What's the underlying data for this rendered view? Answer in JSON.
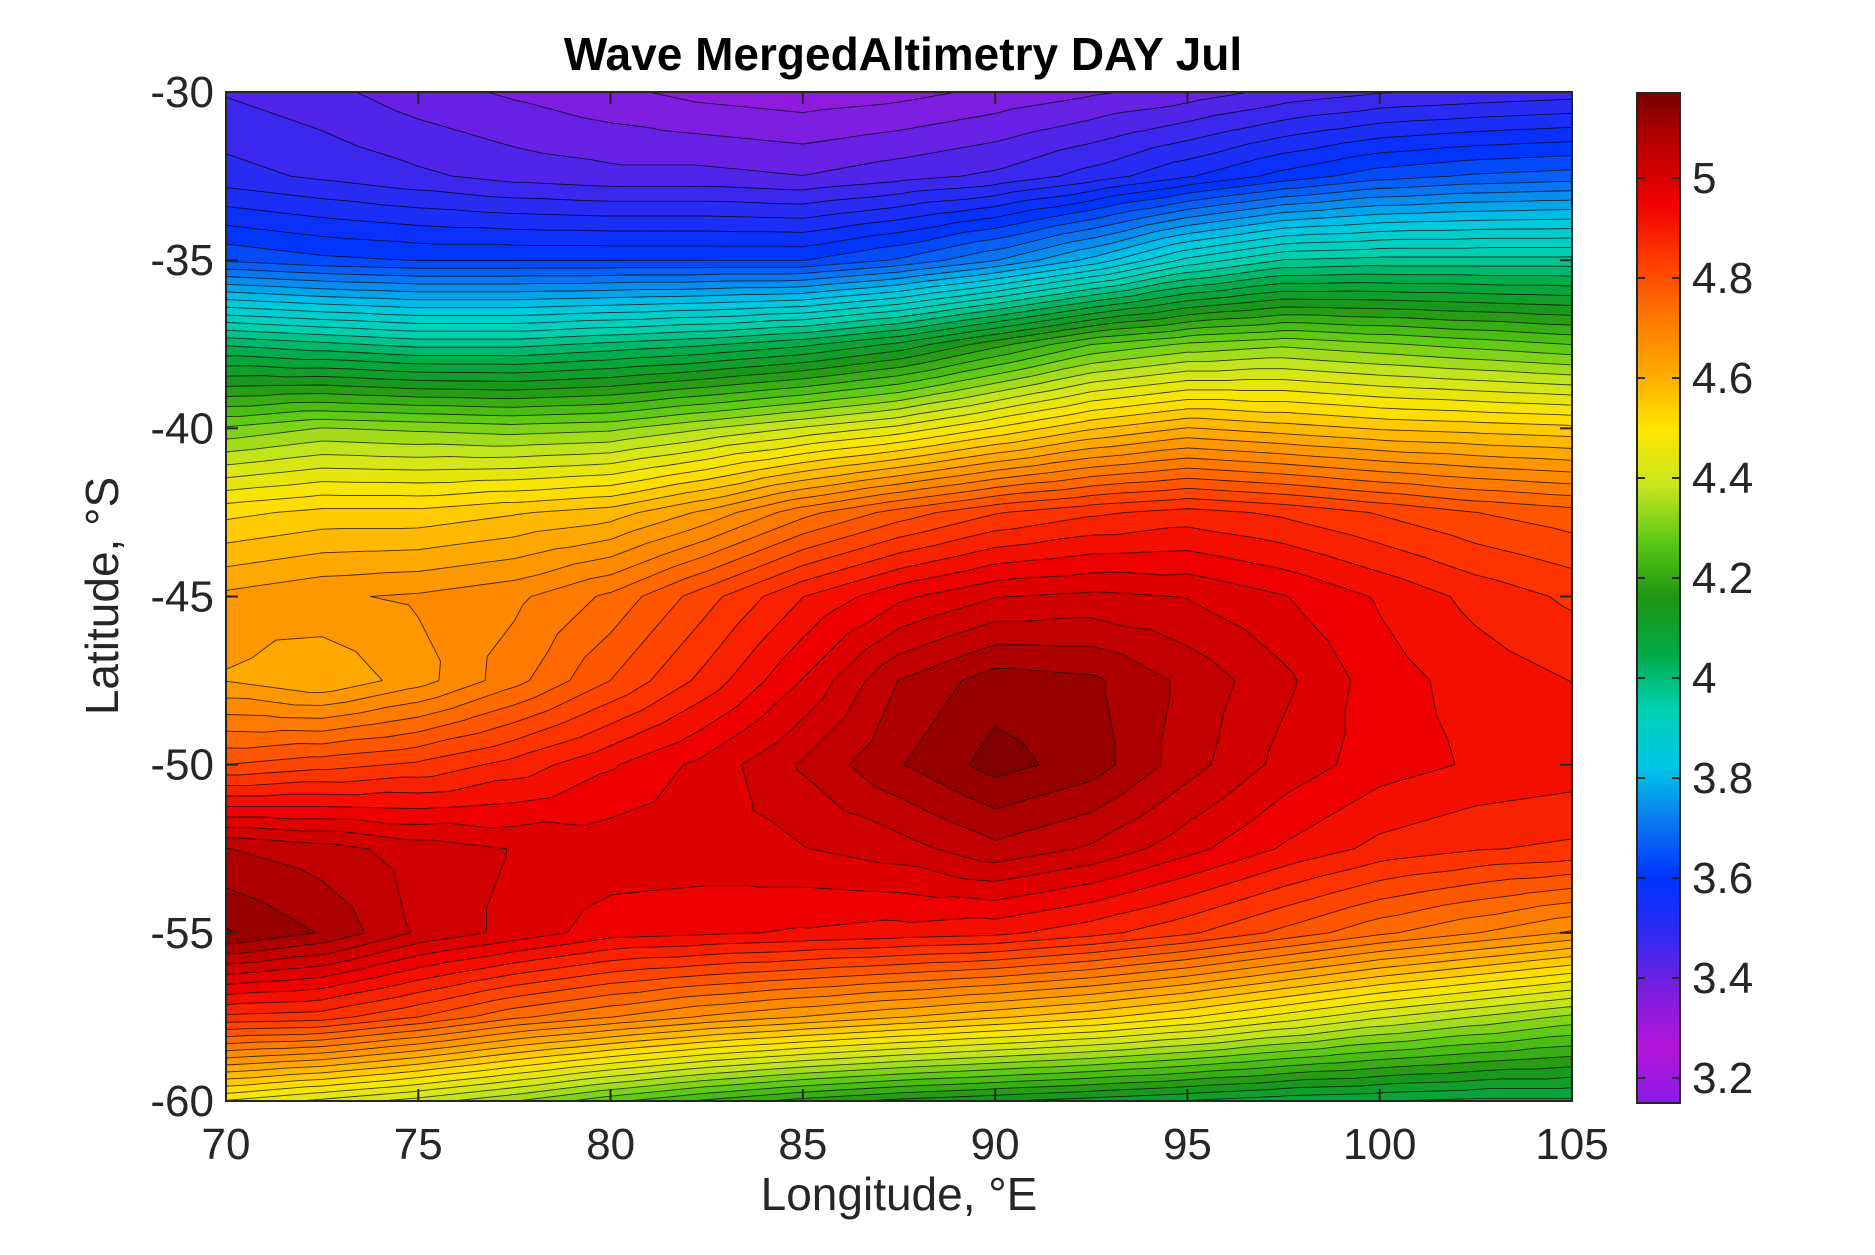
{
  "chart_data": {
    "type": "heatmap",
    "subtype": "filled-contour",
    "title": "Wave MergedAltimetry DAY Jul",
    "xlabel": "Longitude, °E",
    "ylabel": "Latitude, °S",
    "xlim": [
      70,
      105
    ],
    "ylim": [
      -60,
      -30
    ],
    "xticks": [
      70,
      75,
      80,
      85,
      90,
      95,
      100,
      105
    ],
    "yticks": [
      -30,
      -35,
      -40,
      -45,
      -50,
      -55,
      -60
    ],
    "colorbar": {
      "range": [
        3.15,
        5.17
      ],
      "ticks": [
        3.2,
        3.4,
        3.6,
        3.8,
        4,
        4.2,
        4.4,
        4.6,
        4.8,
        5
      ],
      "tick_labels": [
        "3.2",
        "3.4",
        "3.6",
        "3.8",
        "4",
        "4.2",
        "4.4",
        "4.6",
        "4.8",
        "5"
      ],
      "colormap": [
        "#8a1be8",
        "#b414d8",
        "#7a1ee0",
        "#2f2af0",
        "#0032ff",
        "#0a78f0",
        "#00c8e6",
        "#00d2b4",
        "#00aa46",
        "#1e9614",
        "#5ac814",
        "#c8e61e",
        "#ffe600",
        "#ffaa00",
        "#ff7800",
        "#ff3c00",
        "#f00000",
        "#c00000",
        "#780000"
      ]
    },
    "grid": false,
    "field": {
      "lon": [
        70,
        72.5,
        75,
        77.5,
        80,
        82.5,
        85,
        87.5,
        90,
        92.5,
        95,
        97.5,
        100,
        102.5,
        105
      ],
      "lat": [
        -30,
        -32.5,
        -35,
        -37.5,
        -40,
        -42.5,
        -45,
        -47.5,
        -50,
        -52.5,
        -55,
        -57.5,
        -60
      ],
      "values": [
        [
          3.45,
          3.43,
          3.4,
          3.38,
          3.36,
          3.34,
          3.33,
          3.34,
          3.36,
          3.38,
          3.4,
          3.43,
          3.45,
          3.46,
          3.47
        ],
        [
          3.5,
          3.48,
          3.46,
          3.44,
          3.43,
          3.43,
          3.42,
          3.44,
          3.46,
          3.5,
          3.55,
          3.6,
          3.64,
          3.66,
          3.67
        ],
        [
          3.65,
          3.63,
          3.62,
          3.62,
          3.62,
          3.62,
          3.62,
          3.66,
          3.72,
          3.8,
          3.9,
          3.96,
          3.97,
          3.97,
          3.97
        ],
        [
          4.02,
          4.0,
          3.98,
          3.98,
          4.0,
          4.02,
          4.05,
          4.1,
          4.18,
          4.26,
          4.3,
          4.32,
          4.3,
          4.28,
          4.26
        ],
        [
          4.3,
          4.33,
          4.32,
          4.31,
          4.32,
          4.36,
          4.4,
          4.44,
          4.5,
          4.56,
          4.6,
          4.58,
          4.56,
          4.55,
          4.54
        ],
        [
          4.52,
          4.54,
          4.54,
          4.56,
          4.58,
          4.64,
          4.72,
          4.78,
          4.83,
          4.86,
          4.88,
          4.86,
          4.83,
          4.8,
          4.78
        ],
        [
          4.64,
          4.66,
          4.67,
          4.69,
          4.74,
          4.82,
          4.9,
          4.96,
          5.0,
          5.01,
          5.0,
          4.97,
          4.93,
          4.89,
          4.86
        ],
        [
          4.63,
          4.6,
          4.65,
          4.72,
          4.8,
          4.88,
          4.97,
          5.07,
          5.12,
          5.11,
          5.06,
          5.01,
          4.95,
          4.92,
          4.9
        ],
        [
          4.8,
          4.82,
          4.84,
          4.88,
          4.93,
          4.98,
          5.04,
          5.1,
          5.15,
          5.12,
          5.05,
          4.99,
          4.95,
          4.93,
          4.92
        ],
        [
          5.07,
          5.05,
          5.02,
          5.0,
          4.99,
          4.99,
          5.0,
          5.02,
          5.06,
          5.03,
          4.98,
          4.93,
          4.89,
          4.87,
          4.86
        ],
        [
          5.14,
          5.1,
          5.03,
          4.99,
          4.95,
          4.94,
          4.93,
          4.92,
          4.91,
          4.88,
          4.84,
          4.79,
          4.74,
          4.7,
          4.66
        ],
        [
          4.86,
          4.85,
          4.8,
          4.74,
          4.7,
          4.66,
          4.63,
          4.6,
          4.57,
          4.54,
          4.5,
          4.45,
          4.4,
          4.36,
          4.32
        ],
        [
          4.46,
          4.42,
          4.38,
          4.33,
          4.27,
          4.22,
          4.18,
          4.15,
          4.13,
          4.11,
          4.09,
          4.07,
          4.06,
          4.05,
          4.05
        ]
      ]
    }
  }
}
